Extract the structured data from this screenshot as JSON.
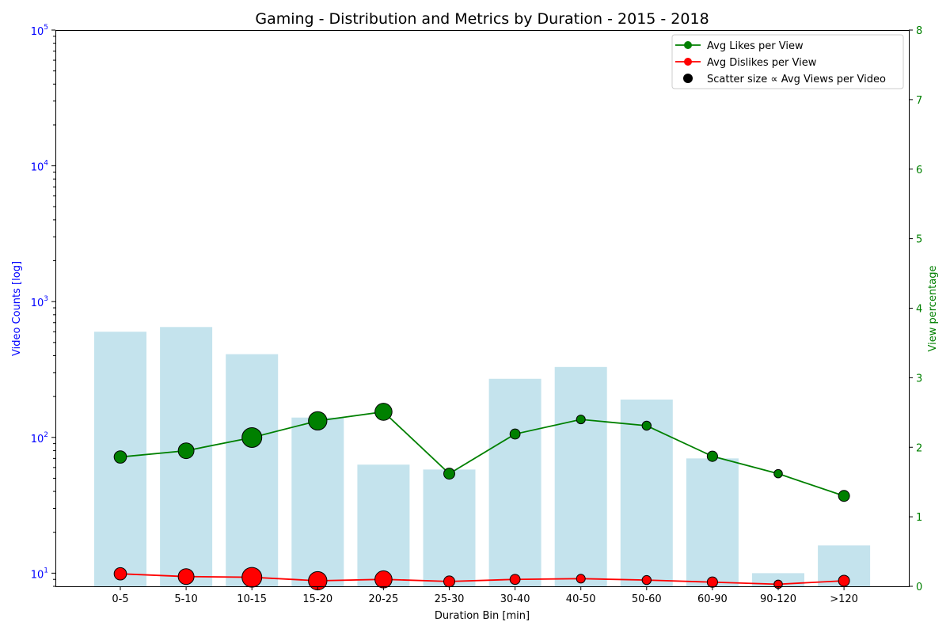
{
  "chart_data": {
    "type": "bar",
    "title": "Gaming - Distribution and Metrics by Duration - 2015 - 2018",
    "xlabel": "Duration Bin [min]",
    "ylabel_left": "Video Counts [log]",
    "ylabel_right": "View percentage",
    "left_scale": "log",
    "ylim_left": [
      8,
      100000
    ],
    "ylim_right": [
      0,
      8
    ],
    "categories": [
      "0-5",
      "5-10",
      "10-15",
      "15-20",
      "20-25",
      "25-30",
      "30-40",
      "40-50",
      "50-60",
      "60-90",
      "90-120",
      ">120"
    ],
    "left_ticks": [
      {
        "value": 10,
        "base": "10",
        "exp": "1"
      },
      {
        "value": 100,
        "base": "10",
        "exp": "2"
      },
      {
        "value": 1000,
        "base": "10",
        "exp": "3"
      },
      {
        "value": 10000,
        "base": "10",
        "exp": "4"
      },
      {
        "value": 100000,
        "base": "10",
        "exp": "5"
      }
    ],
    "right_ticks": [
      "0",
      "1",
      "2",
      "3",
      "4",
      "5",
      "6",
      "7",
      "8"
    ],
    "bars": {
      "values": [
        600,
        650,
        410,
        140,
        63,
        58,
        270,
        330,
        190,
        70,
        10,
        16
      ],
      "color": "#add8e6"
    },
    "series": [
      {
        "name": "Avg Likes per View",
        "color": "#008000",
        "values": [
          1.86,
          1.95,
          2.14,
          2.38,
          2.51,
          1.62,
          2.19,
          2.4,
          2.31,
          1.87,
          1.62,
          1.3
        ]
      },
      {
        "name": "Avg Dislikes per View",
        "color": "#ff0000",
        "values": [
          0.18,
          0.14,
          0.13,
          0.08,
          0.1,
          0.07,
          0.1,
          0.11,
          0.09,
          0.06,
          0.03,
          0.08
        ]
      }
    ],
    "scatter_size_relative": [
      0.45,
      0.7,
      1.0,
      0.9,
      0.8,
      0.35,
      0.28,
      0.18,
      0.2,
      0.3,
      0.15,
      0.35
    ],
    "legend": {
      "placement": "top-right",
      "entries": [
        "Avg Likes per View",
        "Avg Dislikes per View",
        "Scatter size ∝ Avg Views per Video"
      ]
    },
    "colors": {
      "left_axis": "#0000ff",
      "right_axis": "#008000",
      "marker_edge": "#000000"
    }
  }
}
